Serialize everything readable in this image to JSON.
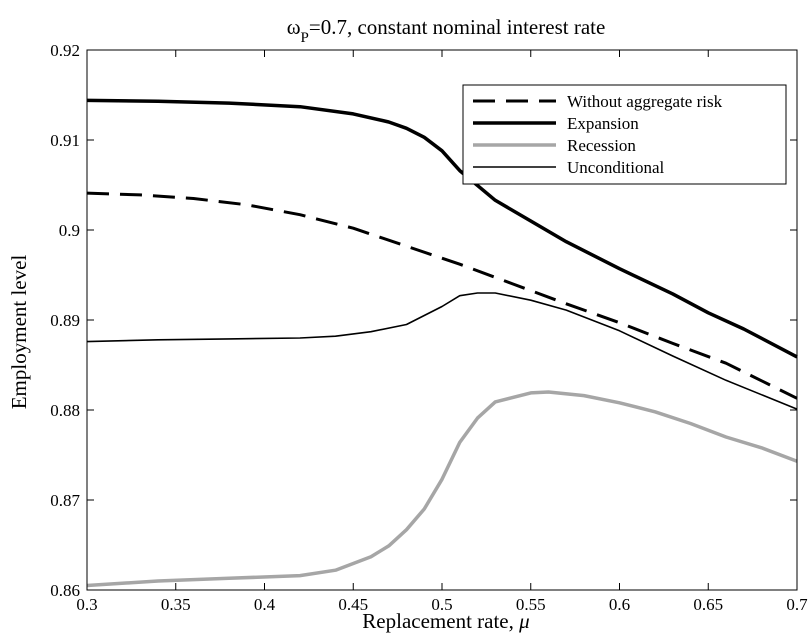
{
  "chart_data": {
    "type": "line",
    "title": {
      "symbol": "ω",
      "subscript": "P",
      "rest": "=0.7, constant nominal interest rate"
    },
    "xlabel": {
      "text": "Replacement rate, ",
      "symbol": "μ"
    },
    "ylabel": "Employment level",
    "xlim": [
      0.3,
      0.7
    ],
    "ylim": [
      0.86,
      0.92
    ],
    "xticks": [
      "0.3",
      "0.35",
      "0.4",
      "0.45",
      "0.5",
      "0.55",
      "0.6",
      "0.65",
      "0.7"
    ],
    "yticks": [
      "0.86",
      "0.87",
      "0.88",
      "0.89",
      "0.9",
      "0.91",
      "0.92"
    ],
    "grid": false,
    "legend_position": "top-right",
    "series": [
      {
        "name": "Without aggregate risk",
        "style": "dashed",
        "color": "#000000",
        "width": 3,
        "points": [
          [
            0.3,
            0.9041
          ],
          [
            0.33,
            0.9039
          ],
          [
            0.36,
            0.9035
          ],
          [
            0.39,
            0.9028
          ],
          [
            0.42,
            0.9017
          ],
          [
            0.45,
            0.9002
          ],
          [
            0.48,
            0.8982
          ],
          [
            0.51,
            0.8962
          ],
          [
            0.54,
            0.894
          ],
          [
            0.57,
            0.8918
          ],
          [
            0.6,
            0.8897
          ],
          [
            0.63,
            0.8874
          ],
          [
            0.66,
            0.8852
          ],
          [
            0.7,
            0.8813
          ]
        ]
      },
      {
        "name": "Expansion",
        "style": "solid",
        "color": "#000000",
        "width": 3.5,
        "points": [
          [
            0.3,
            0.9144
          ],
          [
            0.34,
            0.9143
          ],
          [
            0.38,
            0.9141
          ],
          [
            0.42,
            0.9137
          ],
          [
            0.45,
            0.9129
          ],
          [
            0.47,
            0.912
          ],
          [
            0.48,
            0.9113
          ],
          [
            0.49,
            0.9103
          ],
          [
            0.5,
            0.9088
          ],
          [
            0.51,
            0.9066
          ],
          [
            0.53,
            0.9033
          ],
          [
            0.55,
            0.901
          ],
          [
            0.57,
            0.8987
          ],
          [
            0.6,
            0.8957
          ],
          [
            0.63,
            0.8929
          ],
          [
            0.65,
            0.8908
          ],
          [
            0.67,
            0.889
          ],
          [
            0.7,
            0.8859
          ]
        ]
      },
      {
        "name": "Recession",
        "style": "solid",
        "color": "#a6a6a6",
        "width": 3.5,
        "points": [
          [
            0.3,
            0.8605
          ],
          [
            0.34,
            0.861
          ],
          [
            0.38,
            0.8613
          ],
          [
            0.42,
            0.8616
          ],
          [
            0.44,
            0.8622
          ],
          [
            0.46,
            0.8637
          ],
          [
            0.47,
            0.8649
          ],
          [
            0.48,
            0.8667
          ],
          [
            0.49,
            0.869
          ],
          [
            0.5,
            0.8723
          ],
          [
            0.51,
            0.8764
          ],
          [
            0.52,
            0.8791
          ],
          [
            0.53,
            0.8809
          ],
          [
            0.55,
            0.8819
          ],
          [
            0.56,
            0.882
          ],
          [
            0.58,
            0.8816
          ],
          [
            0.6,
            0.8808
          ],
          [
            0.62,
            0.8798
          ],
          [
            0.64,
            0.8785
          ],
          [
            0.66,
            0.877
          ],
          [
            0.68,
            0.8758
          ],
          [
            0.7,
            0.8743
          ]
        ]
      },
      {
        "name": "Unconditional",
        "style": "solid",
        "color": "#000000",
        "width": 1.6,
        "points": [
          [
            0.3,
            0.8876
          ],
          [
            0.34,
            0.8878
          ],
          [
            0.38,
            0.8879
          ],
          [
            0.42,
            0.888
          ],
          [
            0.44,
            0.8882
          ],
          [
            0.46,
            0.8887
          ],
          [
            0.48,
            0.8895
          ],
          [
            0.5,
            0.8915
          ],
          [
            0.51,
            0.8927
          ],
          [
            0.52,
            0.893
          ],
          [
            0.53,
            0.893
          ],
          [
            0.55,
            0.8922
          ],
          [
            0.57,
            0.8911
          ],
          [
            0.6,
            0.8888
          ],
          [
            0.63,
            0.886
          ],
          [
            0.66,
            0.8833
          ],
          [
            0.7,
            0.8801
          ]
        ]
      }
    ]
  }
}
